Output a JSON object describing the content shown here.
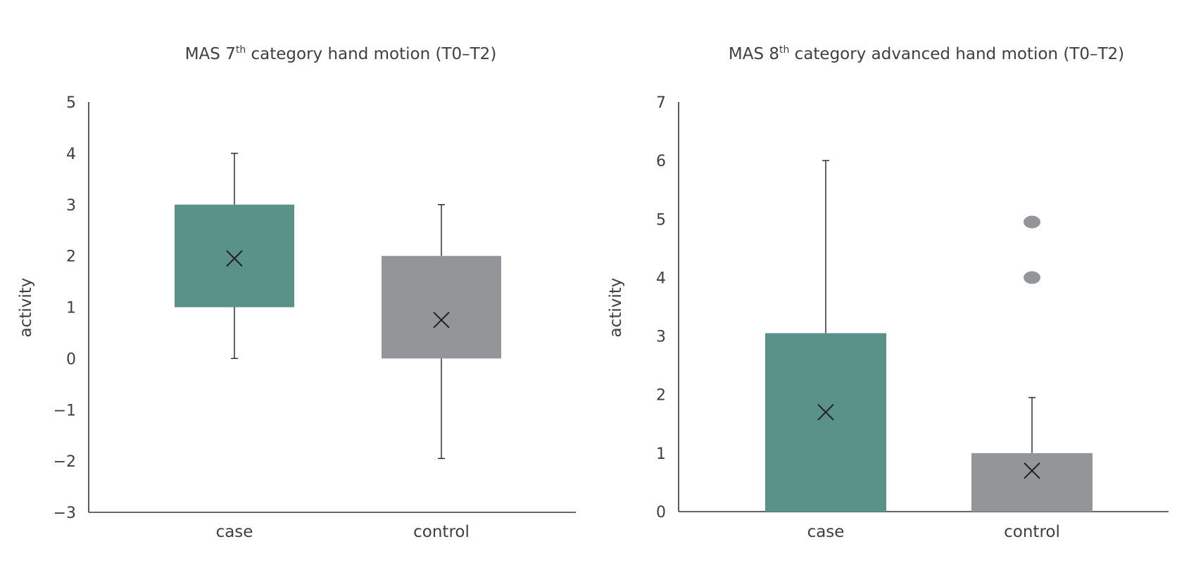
{
  "chart_data": [
    {
      "type": "box",
      "title": {
        "prefix": "MAS 7",
        "sup": "th",
        "suffix": " category hand motion (T0–T2)"
      },
      "ylabel": "activity",
      "ylim": [
        -3,
        5
      ],
      "yticks": [
        "−3",
        "−2",
        "−1",
        "0",
        "1",
        "2",
        "3",
        "4",
        "5"
      ],
      "categories": [
        "case",
        "control"
      ],
      "boxes": [
        {
          "category": "case",
          "color": "#5a9189",
          "q1": 1,
          "q3": 3,
          "whisker_low": 0,
          "whisker_high": 4,
          "mean": 1.95,
          "outliers": []
        },
        {
          "category": "control",
          "color": "#939598",
          "q1": 0,
          "q3": 2,
          "whisker_low": -1.95,
          "whisker_high": 3,
          "mean": 0.75,
          "outliers": []
        }
      ]
    },
    {
      "type": "box",
      "title": {
        "prefix": "MAS 8",
        "sup": "th",
        "suffix": " category advanced hand motion (T0–T2)"
      },
      "ylabel": "activity",
      "ylim": [
        0,
        7
      ],
      "yticks": [
        "0",
        "1",
        "2",
        "3",
        "4",
        "5",
        "6",
        "7"
      ],
      "categories": [
        "case",
        "control"
      ],
      "boxes": [
        {
          "category": "case",
          "color": "#5a9189",
          "q1": 0,
          "q3": 3.05,
          "whisker_low": 0,
          "whisker_high": 6,
          "mean": 1.7,
          "outliers": []
        },
        {
          "category": "control",
          "color": "#939598",
          "q1": 0,
          "q3": 1,
          "whisker_low": 0,
          "whisker_high": 1.95,
          "mean": 0.7,
          "outliers": [
            4,
            4.95
          ]
        }
      ]
    }
  ]
}
